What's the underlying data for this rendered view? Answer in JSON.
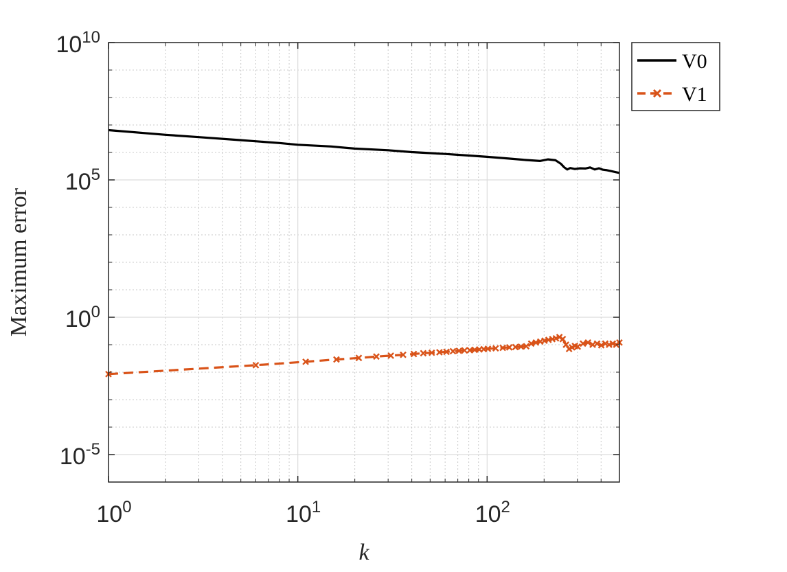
{
  "chart_data": {
    "type": "line",
    "xlabel": "k",
    "ylabel": "Maximum error",
    "x_scale": "log",
    "y_scale": "log",
    "xlim": [
      1,
      500
    ],
    "ylim": [
      1e-06,
      10000000000
    ],
    "grid": true,
    "legend_position": "outside-top-right",
    "x_ticks": [
      {
        "base": "10",
        "exp": "0",
        "value": 1
      },
      {
        "base": "10",
        "exp": "1",
        "value": 10
      },
      {
        "base": "10",
        "exp": "2",
        "value": 100
      }
    ],
    "y_ticks": [
      {
        "base": "10",
        "exp": "10",
        "value": 10000000000
      },
      {
        "base": "10",
        "exp": "5",
        "value": 100000
      },
      {
        "base": "10",
        "exp": "0",
        "value": 1
      },
      {
        "base": "10",
        "exp": "-5",
        "value": 1e-05
      }
    ],
    "series": [
      {
        "name": "V0",
        "color": "#000000",
        "style": "solid",
        "marker": "none",
        "x": [
          1,
          2,
          3,
          5,
          8,
          10,
          15,
          20,
          30,
          40,
          60,
          80,
          100,
          130,
          160,
          190,
          210,
          230,
          245,
          255,
          265,
          275,
          290,
          310,
          330,
          350,
          370,
          390,
          410,
          430,
          450,
          480,
          500
        ],
        "y": [
          6500000,
          4400000,
          3600000,
          2800000,
          2200000,
          1900000,
          1650000,
          1380000,
          1200000,
          1030000,
          880000,
          770000,
          690000,
          600000,
          530000,
          490000,
          560000,
          520000,
          390000,
          290000,
          240000,
          270000,
          250000,
          265000,
          260000,
          285000,
          240000,
          265000,
          235000,
          225000,
          210000,
          190000,
          180000
        ]
      },
      {
        "name": "V1",
        "color": "#D95319",
        "style": "dashed",
        "marker": "x",
        "x": [
          1,
          6,
          11,
          16,
          21,
          26,
          31,
          36,
          41,
          46,
          51,
          56,
          61,
          66,
          71,
          76,
          81,
          86,
          91,
          96,
          101,
          111,
          121,
          131,
          141,
          151,
          161,
          171,
          181,
          191,
          201,
          211,
          221,
          231,
          241,
          251,
          261,
          271,
          281,
          291,
          301,
          321,
          341,
          361,
          381,
          401,
          421,
          441,
          461,
          481,
          500
        ],
        "y": [
          0.0085,
          0.018,
          0.024,
          0.029,
          0.033,
          0.037,
          0.04,
          0.043,
          0.046,
          0.049,
          0.051,
          0.053,
          0.055,
          0.058,
          0.06,
          0.062,
          0.063,
          0.065,
          0.067,
          0.069,
          0.071,
          0.074,
          0.077,
          0.08,
          0.082,
          0.085,
          0.088,
          0.11,
          0.12,
          0.13,
          0.14,
          0.15,
          0.16,
          0.17,
          0.19,
          0.16,
          0.1,
          0.07,
          0.08,
          0.09,
          0.085,
          0.11,
          0.12,
          0.1,
          0.11,
          0.095,
          0.11,
          0.1,
          0.11,
          0.1,
          0.12
        ]
      }
    ]
  }
}
